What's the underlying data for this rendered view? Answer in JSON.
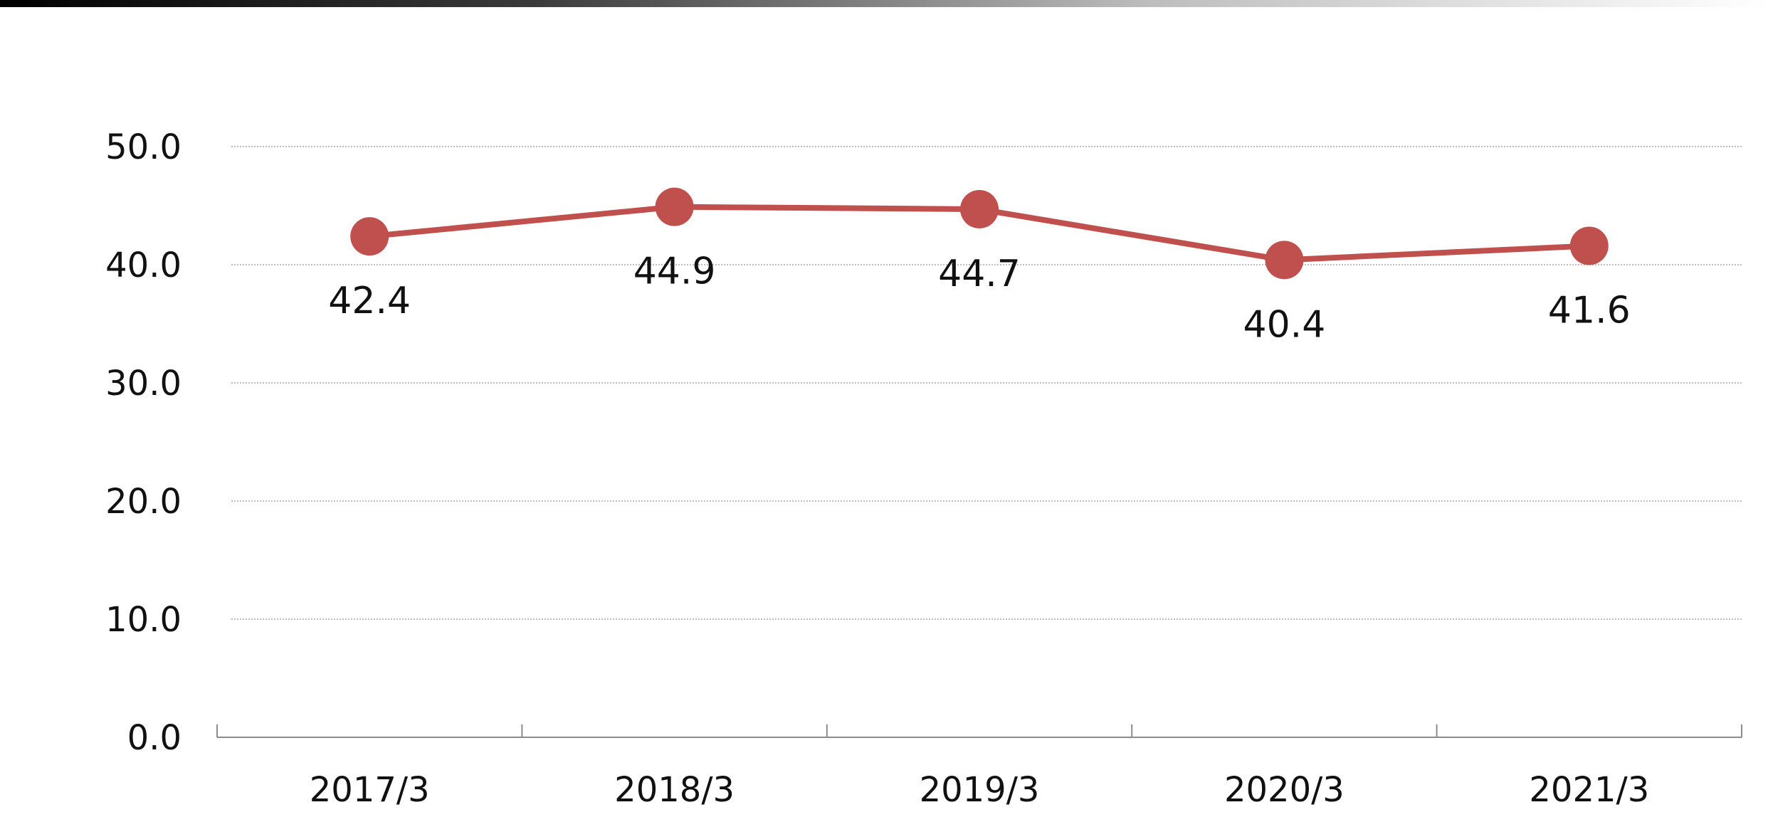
{
  "chart_data": {
    "type": "line",
    "categories": [
      "2017/3",
      "2018/3",
      "2019/3",
      "2020/3",
      "2021/3"
    ],
    "series": [
      {
        "values": [
          42.4,
          44.9,
          44.7,
          40.4,
          41.6
        ],
        "color": "#c0504d"
      }
    ],
    "data_labels": [
      "42.4",
      "44.9",
      "44.7",
      "40.4",
      "41.6"
    ],
    "ylim": [
      0,
      50
    ],
    "y_ticks": [
      "0.0",
      "10.0",
      "20.0",
      "30.0",
      "40.0",
      "50.0"
    ],
    "title": "",
    "xlabel": "",
    "ylabel": "",
    "grid": true,
    "legend": "none"
  }
}
